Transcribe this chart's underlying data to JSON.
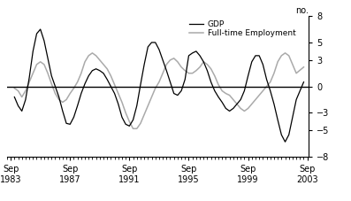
{
  "title": "",
  "ylabel": "no.",
  "ylim": [
    -8,
    8
  ],
  "yticks": [
    -8,
    -5,
    -3,
    0,
    3,
    5,
    8
  ],
  "xtick_years": [
    1983,
    1987,
    1991,
    1995,
    1999,
    2003
  ],
  "xtick_labels": [
    "Sep\n1983",
    "Sep\n1987",
    "Sep\n1991",
    "Sep\n1995",
    "Sep\n1999",
    "Sep\n2003"
  ],
  "gdp_color": "#000000",
  "employment_color": "#aaaaaa",
  "legend_labels": [
    "GDP",
    "Full-time Employment"
  ],
  "background_color": "#ffffff",
  "gdp_linewidth": 0.9,
  "employment_linewidth": 1.1,
  "xlim_left": 1983.5,
  "xlim_right": 2003.85,
  "gdp_x": [
    1984.0,
    1984.25,
    1984.5,
    1984.75,
    1985.0,
    1985.25,
    1985.5,
    1985.75,
    1986.0,
    1986.25,
    1986.5,
    1986.75,
    1987.0,
    1987.25,
    1987.5,
    1987.75,
    1988.0,
    1988.25,
    1988.5,
    1988.75,
    1989.0,
    1989.25,
    1989.5,
    1989.75,
    1990.0,
    1990.25,
    1990.5,
    1990.75,
    1991.0,
    1991.25,
    1991.5,
    1991.75,
    1992.0,
    1992.25,
    1992.5,
    1992.75,
    1993.0,
    1993.25,
    1993.5,
    1993.75,
    1994.0,
    1994.25,
    1994.5,
    1994.75,
    1995.0,
    1995.25,
    1995.5,
    1995.75,
    1996.0,
    1996.25,
    1996.5,
    1996.75,
    1997.0,
    1997.25,
    1997.5,
    1997.75,
    1998.0,
    1998.25,
    1998.5,
    1998.75,
    1999.0,
    1999.25,
    1999.5,
    1999.75,
    2000.0,
    2000.25,
    2000.5,
    2000.75,
    2001.0,
    2001.25,
    2001.5,
    2001.75,
    2002.0,
    2002.25,
    2002.5,
    2002.75,
    2003.0,
    2003.5
  ],
  "gdp_y": [
    -1.2,
    -2.2,
    -2.8,
    -1.5,
    1.0,
    4.0,
    6.0,
    6.5,
    5.2,
    3.2,
    1.2,
    0.0,
    -1.2,
    -2.8,
    -4.2,
    -4.3,
    -3.5,
    -2.2,
    -0.8,
    0.3,
    1.2,
    1.8,
    2.0,
    1.8,
    1.5,
    0.8,
    0.0,
    -0.8,
    -2.0,
    -3.5,
    -4.3,
    -4.5,
    -3.8,
    -2.2,
    0.2,
    2.5,
    4.5,
    5.0,
    5.0,
    4.2,
    3.0,
    1.8,
    0.5,
    -0.8,
    -1.0,
    -0.5,
    0.8,
    3.5,
    3.8,
    4.0,
    3.5,
    2.8,
    1.8,
    0.5,
    -0.5,
    -1.2,
    -1.8,
    -2.5,
    -2.8,
    -2.5,
    -2.0,
    -1.5,
    -0.5,
    1.2,
    2.8,
    3.5,
    3.5,
    2.5,
    0.8,
    -0.5,
    -2.0,
    -3.8,
    -5.5,
    -6.3,
    -5.5,
    -3.5,
    -1.5,
    0.5
  ],
  "emp_x": [
    1984.0,
    1984.25,
    1984.5,
    1984.75,
    1985.0,
    1985.25,
    1985.5,
    1985.75,
    1986.0,
    1986.25,
    1986.5,
    1986.75,
    1987.0,
    1987.25,
    1987.5,
    1987.75,
    1988.0,
    1988.25,
    1988.5,
    1988.75,
    1989.0,
    1989.25,
    1989.5,
    1989.75,
    1990.0,
    1990.25,
    1990.5,
    1990.75,
    1991.0,
    1991.25,
    1991.5,
    1991.75,
    1992.0,
    1992.25,
    1992.5,
    1992.75,
    1993.0,
    1993.25,
    1993.5,
    1993.75,
    1994.0,
    1994.25,
    1994.5,
    1994.75,
    1995.0,
    1995.25,
    1995.5,
    1995.75,
    1996.0,
    1996.25,
    1996.5,
    1996.75,
    1997.0,
    1997.25,
    1997.5,
    1997.75,
    1998.0,
    1998.25,
    1998.5,
    1998.75,
    1999.0,
    1999.25,
    1999.5,
    1999.75,
    2000.0,
    2000.25,
    2000.5,
    2000.75,
    2001.0,
    2001.25,
    2001.5,
    2001.75,
    2002.0,
    2002.25,
    2002.5,
    2002.75,
    2003.0,
    2003.5
  ],
  "emp_y": [
    -0.2,
    -0.5,
    -1.2,
    -0.5,
    0.5,
    1.5,
    2.5,
    2.8,
    2.5,
    1.5,
    0.3,
    -0.8,
    -1.5,
    -1.8,
    -1.5,
    -0.8,
    -0.2,
    0.5,
    1.5,
    2.8,
    3.5,
    3.8,
    3.5,
    3.0,
    2.5,
    2.0,
    1.2,
    0.2,
    -0.8,
    -1.8,
    -3.0,
    -4.0,
    -4.8,
    -4.8,
    -4.2,
    -3.2,
    -2.2,
    -1.2,
    -0.2,
    0.5,
    1.5,
    2.5,
    3.0,
    3.2,
    2.8,
    2.2,
    1.8,
    1.5,
    1.5,
    1.8,
    2.2,
    2.8,
    2.5,
    2.0,
    1.2,
    0.2,
    -0.5,
    -0.8,
    -1.0,
    -1.5,
    -2.0,
    -2.5,
    -2.8,
    -2.5,
    -2.0,
    -1.5,
    -1.0,
    -0.5,
    0.0,
    0.5,
    1.5,
    2.8,
    3.5,
    3.8,
    3.5,
    2.5,
    1.5,
    2.2
  ]
}
